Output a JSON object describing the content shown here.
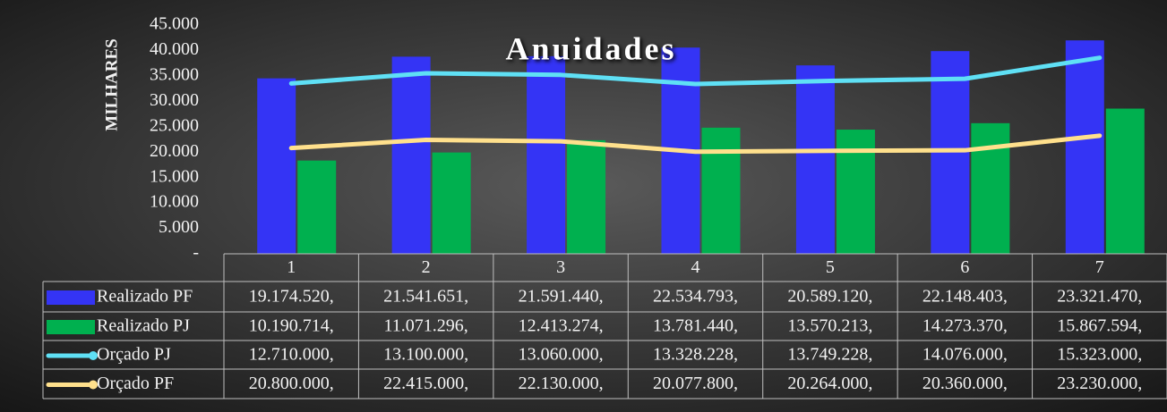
{
  "chart_data": {
    "type": "bar",
    "title": "Anuidades",
    "y_axis_label": "MILHARES",
    "categories": [
      "1",
      "2",
      "3",
      "4",
      "5",
      "6",
      "7"
    ],
    "ylim": [
      0,
      45000000
    ],
    "yticks": [
      {
        "value": 0,
        "label": "-"
      },
      {
        "value": 5000000,
        "label": "5.000"
      },
      {
        "value": 10000000,
        "label": "10.000"
      },
      {
        "value": 15000000,
        "label": "15.000"
      },
      {
        "value": 20000000,
        "label": "20.000"
      },
      {
        "value": 25000000,
        "label": "25.000"
      },
      {
        "value": 30000000,
        "label": "30.000"
      },
      {
        "value": 35000000,
        "label": "35.000"
      },
      {
        "value": 40000000,
        "label": "40.000"
      },
      {
        "value": 45000000,
        "label": "45.000"
      }
    ],
    "y2lim": [
      0,
      25000000
    ],
    "stacked_lines": true,
    "series": [
      {
        "name": "Realizado PF",
        "type": "bar",
        "axis": "y2",
        "color": "#3434f5",
        "values": [
          19174520,
          21541651,
          21591440,
          22534793,
          20589120,
          22148403,
          23321470
        ],
        "value_labels": [
          "19.174.520,",
          "21.541.651,",
          "21.591.440,",
          "22.534.793,",
          "20.589.120,",
          "22.148.403,",
          "23.321.470,"
        ]
      },
      {
        "name": "Realizado PJ",
        "type": "bar",
        "axis": "y2",
        "color": "#00b04f",
        "values": [
          10190714,
          11071296,
          12413274,
          13781440,
          13570213,
          14273370,
          15867594
        ],
        "value_labels": [
          "10.190.714,",
          "11.071.296,",
          "12.413.274,",
          "13.781.440,",
          "13.570.213,",
          "14.273.370,",
          "15.867.594,"
        ]
      },
      {
        "name": "Orçado PJ",
        "type": "line",
        "color": "#5fe0f5",
        "values": [
          12710000,
          13100000,
          13060000,
          13328228,
          13749228,
          14076000,
          15323000
        ],
        "value_labels": [
          "12.710.000,",
          "13.100.000,",
          "13.060.000,",
          "13.328.228,",
          "13.749.228,",
          "14.076.000,",
          "15.323.000,"
        ]
      },
      {
        "name": "Orçado PF",
        "type": "line",
        "color": "#ffe08c",
        "values": [
          20800000,
          22415000,
          22130000,
          20077800,
          20264000,
          20360000,
          23230000
        ],
        "value_labels": [
          "20.800.000,",
          "22.415.000,",
          "22.130.000,",
          "20.077.800,",
          "20.264.000,",
          "20.360.000,",
          "23.230.000,"
        ]
      }
    ]
  }
}
